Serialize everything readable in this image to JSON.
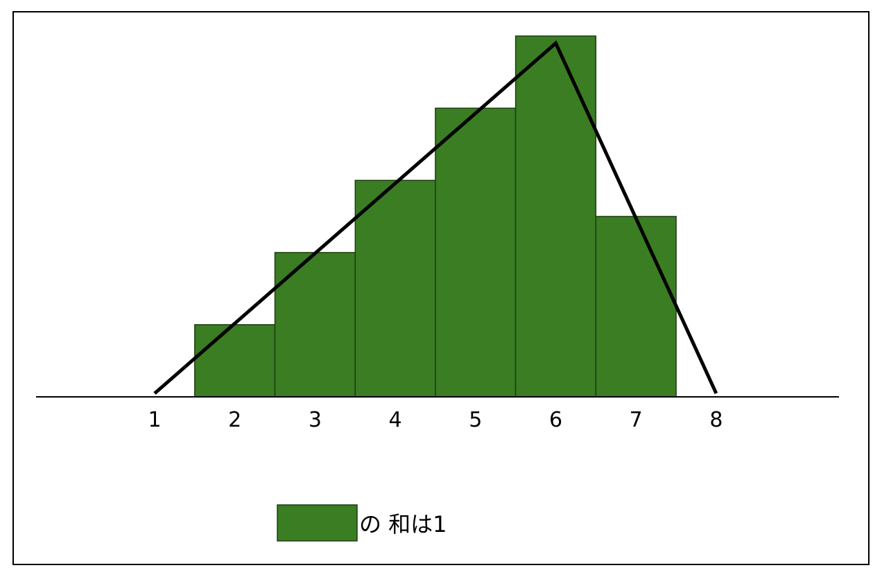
{
  "chart_data": {
    "type": "bar",
    "categories": [
      "1",
      "2",
      "3",
      "4",
      "5",
      "6",
      "7",
      "8"
    ],
    "bars": [
      {
        "x": 2,
        "value": 2
      },
      {
        "x": 3,
        "value": 4
      },
      {
        "x": 4,
        "value": 6
      },
      {
        "x": 5,
        "value": 8
      },
      {
        "x": 6,
        "value": 10
      },
      {
        "x": 7,
        "value": 5
      }
    ],
    "line": {
      "type": "line",
      "points": [
        {
          "x": 1,
          "y": 0
        },
        {
          "x": 6,
          "y": 9.8
        },
        {
          "x": 8,
          "y": 0
        }
      ]
    },
    "title": "",
    "xlabel": "",
    "ylabel": "",
    "xlim": [
      0.5,
      9.8
    ],
    "ylim": [
      0,
      10
    ],
    "grid": false,
    "legend": {
      "position": "bottom-center",
      "label": "の 和は1"
    },
    "colors": {
      "bar_fill": "#3a7d22",
      "bar_stroke": "#1e3d12",
      "line": "#000000",
      "axis": "#000000"
    }
  }
}
